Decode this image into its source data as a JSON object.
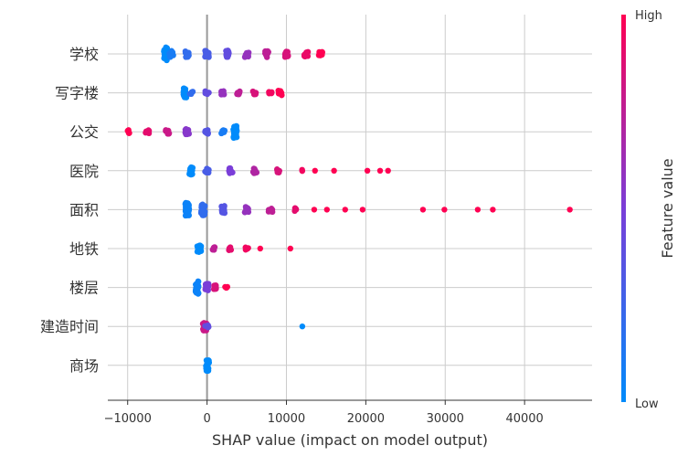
{
  "chart_data": {
    "type": "scatter",
    "subtype": "shap-beeswarm",
    "xlabel": "SHAP value (impact on model output)",
    "xlim": [
      -12500,
      48500
    ],
    "xticks": [
      -10000,
      0,
      10000,
      20000,
      30000,
      40000
    ],
    "tick_labels": [
      "−10000",
      "0",
      "10000",
      "20000",
      "30000",
      "40000"
    ],
    "colorbar": {
      "label": "Feature value",
      "high_label": "High",
      "low_label": "Low",
      "low_color": "#008bfb",
      "high_color": "#ff0052"
    },
    "features": [
      {
        "name": "学校",
        "points": [
          {
            "x": -5200,
            "v": 0.0,
            "n": 30
          },
          {
            "x": -4500,
            "v": 0.1,
            "n": 14
          },
          {
            "x": -2500,
            "v": 0.2,
            "n": 14
          },
          {
            "x": 0,
            "v": 0.3,
            "n": 14
          },
          {
            "x": 2500,
            "v": 0.4,
            "n": 14
          },
          {
            "x": 5000,
            "v": 0.6,
            "n": 14
          },
          {
            "x": 7500,
            "v": 0.75,
            "n": 14
          },
          {
            "x": 10000,
            "v": 0.85,
            "n": 14
          },
          {
            "x": 12500,
            "v": 0.92,
            "n": 12
          },
          {
            "x": 14300,
            "v": 1.0,
            "n": 8
          }
        ]
      },
      {
        "name": "写字楼",
        "points": [
          {
            "x": -2800,
            "v": 0.0,
            "n": 22
          },
          {
            "x": -2000,
            "v": 0.2,
            "n": 6
          },
          {
            "x": 0,
            "v": 0.4,
            "n": 6
          },
          {
            "x": 2000,
            "v": 0.6,
            "n": 6
          },
          {
            "x": 4000,
            "v": 0.75,
            "n": 6
          },
          {
            "x": 6000,
            "v": 0.85,
            "n": 6
          },
          {
            "x": 8000,
            "v": 0.95,
            "n": 6
          },
          {
            "x": 9200,
            "v": 1.0,
            "n": 10
          }
        ]
      },
      {
        "name": "公交",
        "points": [
          {
            "x": 3500,
            "v": 0.0,
            "n": 28
          },
          {
            "x": 2000,
            "v": 0.1,
            "n": 6
          },
          {
            "x": 0,
            "v": 0.35,
            "n": 10
          },
          {
            "x": -2500,
            "v": 0.55,
            "n": 12
          },
          {
            "x": -5000,
            "v": 0.8,
            "n": 8
          },
          {
            "x": -7500,
            "v": 0.9,
            "n": 6
          },
          {
            "x": -9800,
            "v": 1.0,
            "n": 6
          }
        ]
      },
      {
        "name": "医院",
        "points": [
          {
            "x": -2000,
            "v": 0.0,
            "n": 18
          },
          {
            "x": 0,
            "v": 0.3,
            "n": 10
          },
          {
            "x": 3000,
            "v": 0.5,
            "n": 10
          },
          {
            "x": 6000,
            "v": 0.7,
            "n": 10
          },
          {
            "x": 9000,
            "v": 0.85,
            "n": 8
          },
          {
            "x": 12000,
            "v": 0.95,
            "n": 3
          },
          {
            "x": 13600,
            "v": 1.0,
            "n": 1
          },
          {
            "x": 16000,
            "v": 1.0,
            "n": 1
          },
          {
            "x": 20200,
            "v": 1.0,
            "n": 1
          },
          {
            "x": 21800,
            "v": 1.0,
            "n": 1
          },
          {
            "x": 22800,
            "v": 1.0,
            "n": 1
          }
        ]
      },
      {
        "name": "面积",
        "points": [
          {
            "x": -2500,
            "v": 0.05,
            "n": 40
          },
          {
            "x": -500,
            "v": 0.2,
            "n": 30
          },
          {
            "x": 2000,
            "v": 0.35,
            "n": 16
          },
          {
            "x": 5000,
            "v": 0.6,
            "n": 12
          },
          {
            "x": 8000,
            "v": 0.75,
            "n": 10
          },
          {
            "x": 11000,
            "v": 0.9,
            "n": 6
          },
          {
            "x": 13500,
            "v": 1.0,
            "n": 1
          },
          {
            "x": 15100,
            "v": 1.0,
            "n": 1
          },
          {
            "x": 17400,
            "v": 1.0,
            "n": 1
          },
          {
            "x": 19600,
            "v": 1.0,
            "n": 1
          },
          {
            "x": 27200,
            "v": 1.0,
            "n": 1
          },
          {
            "x": 29900,
            "v": 1.0,
            "n": 1
          },
          {
            "x": 34100,
            "v": 1.0,
            "n": 1
          },
          {
            "x": 36000,
            "v": 1.0,
            "n": 1
          },
          {
            "x": 45700,
            "v": 1.0,
            "n": 1
          }
        ]
      },
      {
        "name": "地铁",
        "points": [
          {
            "x": -1000,
            "v": 0.0,
            "n": 16
          },
          {
            "x": 800,
            "v": 0.75,
            "n": 6
          },
          {
            "x": 2800,
            "v": 0.9,
            "n": 6
          },
          {
            "x": 5000,
            "v": 0.95,
            "n": 4
          },
          {
            "x": 6700,
            "v": 1.0,
            "n": 1
          },
          {
            "x": 10500,
            "v": 1.0,
            "n": 1
          }
        ]
      },
      {
        "name": "楼层",
        "points": [
          {
            "x": -1200,
            "v": 0.05,
            "n": 30
          },
          {
            "x": 0,
            "v": 0.5,
            "n": 16
          },
          {
            "x": 1000,
            "v": 0.85,
            "n": 10
          },
          {
            "x": 2500,
            "v": 1.0,
            "n": 4
          }
        ]
      },
      {
        "name": "建造时间",
        "points": [
          {
            "x": -300,
            "v": 0.8,
            "n": 20
          },
          {
            "x": 0,
            "v": 0.4,
            "n": 6
          },
          {
            "x": 12000,
            "v": 0.0,
            "n": 1
          }
        ]
      },
      {
        "name": "商场",
        "points": [
          {
            "x": 0,
            "v": 0.0,
            "n": 26
          }
        ]
      }
    ]
  }
}
